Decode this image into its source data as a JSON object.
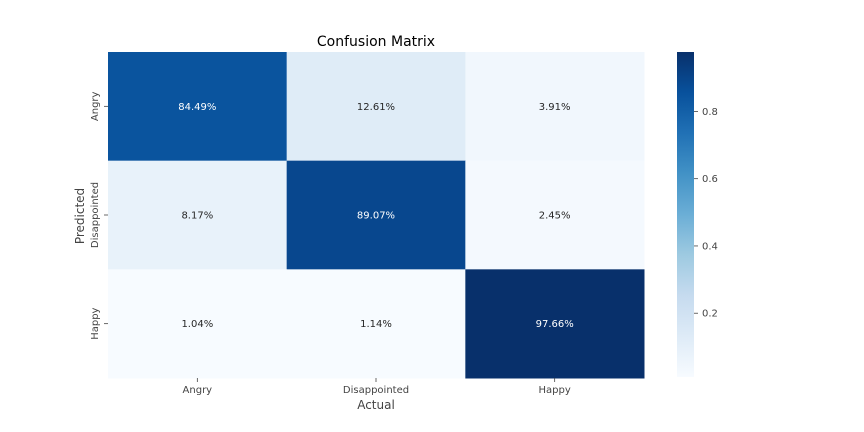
{
  "chart_data": {
    "type": "heatmap",
    "title": "Confusion Matrix",
    "xlabel": "Actual",
    "ylabel": "Predicted",
    "x_categories": [
      "Angry",
      "Disappointed",
      "Happy"
    ],
    "y_categories": [
      "Angry",
      "Disappointed",
      "Happy"
    ],
    "values": [
      [
        0.8449,
        0.1261,
        0.0391
      ],
      [
        0.0817,
        0.8907,
        0.0245
      ],
      [
        0.0104,
        0.0114,
        0.9766
      ]
    ],
    "cell_labels": [
      [
        "84.49%",
        "12.61%",
        "3.91%"
      ],
      [
        "8.17%",
        "89.07%",
        "2.45%"
      ],
      [
        "1.04%",
        "1.14%",
        "97.66%"
      ]
    ],
    "colormap": "Blues",
    "colorbar": {
      "ticks": [
        0.2,
        0.4,
        0.6,
        0.8
      ],
      "tick_labels": [
        "0.2",
        "0.4",
        "0.6",
        "0.8"
      ],
      "range": [
        0.0104,
        0.9766
      ]
    },
    "grid": false,
    "legend": "colorbar-right"
  }
}
